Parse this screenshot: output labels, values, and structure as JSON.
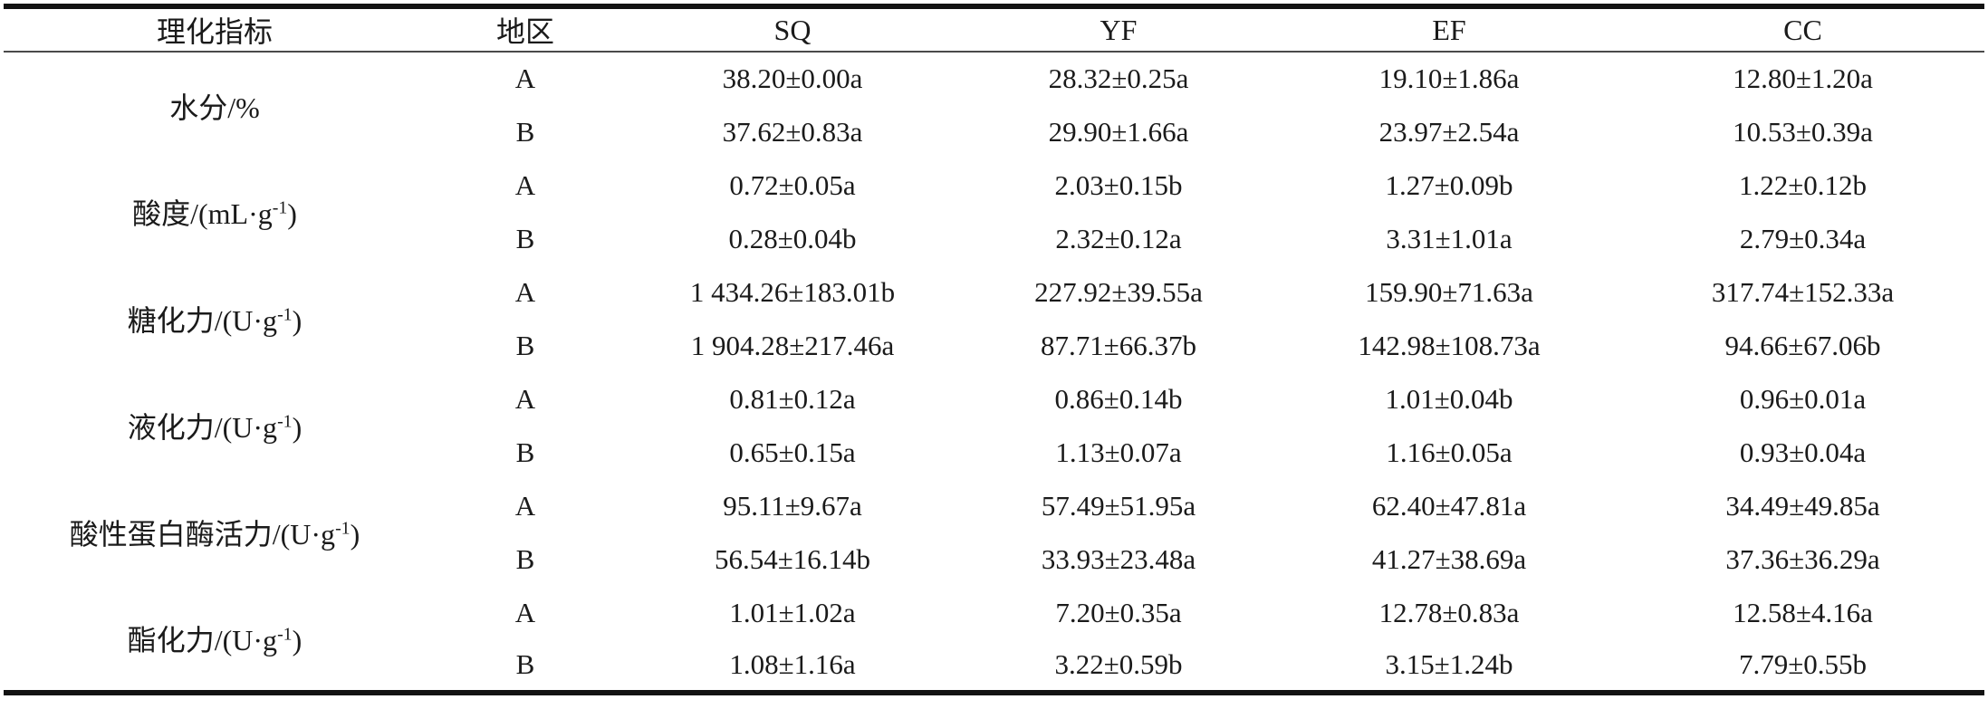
{
  "table": {
    "columns": [
      "理化指标",
      "地区",
      "SQ",
      "YF",
      "EF",
      "CC"
    ],
    "regions": [
      "A",
      "B"
    ],
    "rows": [
      {
        "indicator": {
          "main": "水分/%",
          "sup": "",
          "close": ""
        },
        "a": [
          "38.20±0.00a",
          "28.32±0.25a",
          "19.10±1.86a",
          "12.80±1.20a"
        ],
        "b": [
          "37.62±0.83a",
          "29.90±1.66a",
          "23.97±2.54a",
          "10.53±0.39a"
        ]
      },
      {
        "indicator": {
          "main": "酸度/(mL·g",
          "sup": "-1",
          "close": ")"
        },
        "a": [
          "0.72±0.05a",
          "2.03±0.15b",
          "1.27±0.09b",
          "1.22±0.12b"
        ],
        "b": [
          "0.28±0.04b",
          "2.32±0.12a",
          "3.31±1.01a",
          "2.79±0.34a"
        ]
      },
      {
        "indicator": {
          "main": "糖化力/(U·g",
          "sup": "-1",
          "close": ")"
        },
        "a": [
          "1 434.26±183.01b",
          "227.92±39.55a",
          "159.90±71.63a",
          "317.74±152.33a"
        ],
        "b": [
          "1 904.28±217.46a",
          "87.71±66.37b",
          "142.98±108.73a",
          "94.66±67.06b"
        ]
      },
      {
        "indicator": {
          "main": "液化力/(U·g",
          "sup": "-1",
          "close": ")"
        },
        "a": [
          "0.81±0.12a",
          "0.86±0.14b",
          "1.01±0.04b",
          "0.96±0.01a"
        ],
        "b": [
          "0.65±0.15a",
          "1.13±0.07a",
          "1.16±0.05a",
          "0.93±0.04a"
        ]
      },
      {
        "indicator": {
          "main": "酸性蛋白酶活力/(U·g",
          "sup": "-1",
          "close": ")"
        },
        "a": [
          "95.11±9.67a",
          "57.49±51.95a",
          "62.40±47.81a",
          "34.49±49.85a"
        ],
        "b": [
          "56.54±16.14b",
          "33.93±23.48a",
          "41.27±38.69a",
          "37.36±36.29a"
        ]
      },
      {
        "indicator": {
          "main": "酯化力/(U·g",
          "sup": "-1",
          "close": ")"
        },
        "a": [
          "1.01±1.02a",
          "7.20±0.35a",
          "12.78±0.83a",
          "12.58±4.16a"
        ],
        "b": [
          "1.08±1.16a",
          "3.22±0.59b",
          "3.15±1.24b",
          "7.79±0.55b"
        ]
      }
    ]
  }
}
